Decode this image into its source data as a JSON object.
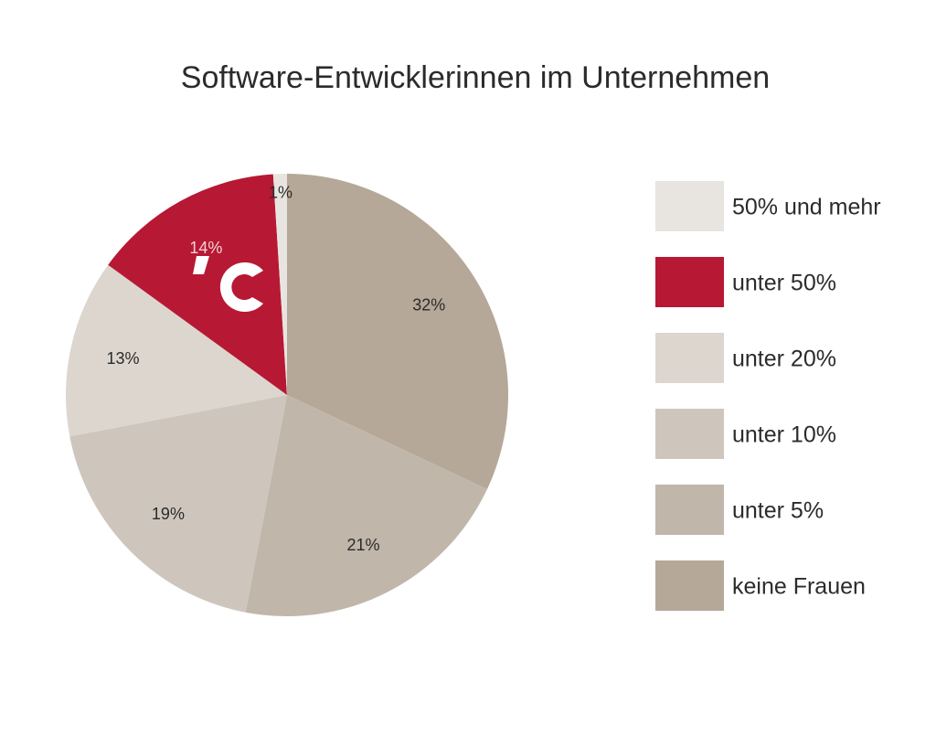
{
  "chart_data": {
    "type": "pie",
    "title": "Software-Entwicklerinnen im Unternehmen",
    "slices": [
      {
        "label": "keine Frauen",
        "value": 32,
        "value_label": "32%",
        "color": "#b5a898",
        "label_color": "#2b2b2b"
      },
      {
        "label": "unter 5%",
        "value": 21,
        "value_label": "21%",
        "color": "#c1b6aa",
        "label_color": "#2b2b2b"
      },
      {
        "label": "unter 10%",
        "value": 19,
        "value_label": "19%",
        "color": "#cec6bd",
        "label_color": "#2b2b2b"
      },
      {
        "label": "unter 20%",
        "value": 13,
        "value_label": "13%",
        "color": "#dcd6cf",
        "label_color": "#2b2b2b"
      },
      {
        "label": "unter 50%",
        "value": 14,
        "value_label": "14%",
        "color": "#b71833",
        "label_color": "#f2d0d6"
      },
      {
        "label": "50% und mehr",
        "value": 1,
        "value_label": "1%",
        "color": "#e8e5e0",
        "label_color": "#2b2b2b"
      }
    ],
    "legend": {
      "placement": "right",
      "order": [
        "50% und mehr",
        "unter 50%",
        "unter 20%",
        "unter 10%",
        "unter 5%",
        "keine Frauen"
      ]
    }
  },
  "logo": {
    "text": "ċ",
    "color": "#ffffff"
  }
}
